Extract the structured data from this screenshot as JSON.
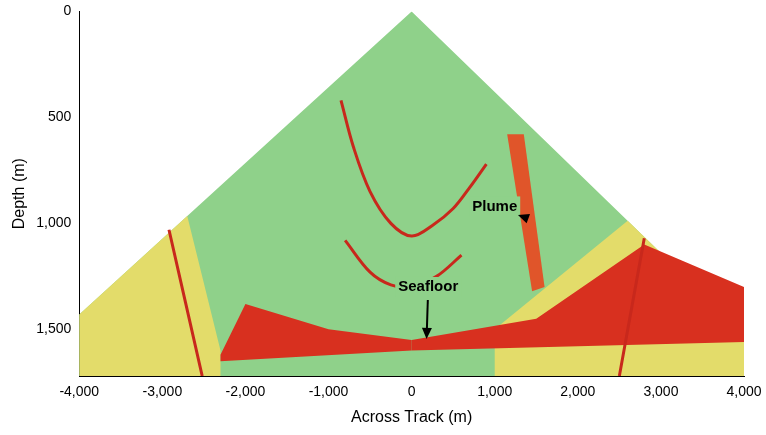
{
  "chart_data": {
    "type": "scatter",
    "x_label": "Across Track (m)",
    "y_label": "Depth (m)",
    "xlim": [
      -4000,
      4000
    ],
    "xticks": [
      -4000,
      -3000,
      -2000,
      -1000,
      0,
      1000,
      2000,
      3000,
      4000
    ],
    "ylim": [
      0,
      1720
    ],
    "yticks": [
      0,
      500,
      1000,
      1500
    ],
    "grid": false,
    "series": [
      {
        "type": "area",
        "color": "#8fd18a",
        "x": [
          0,
          -4000,
          -4000,
          4000,
          4000,
          0
        ],
        "values": [
          0,
          1430,
          1720,
          1720,
          1520,
          0
        ]
      },
      {
        "type": "area",
        "color": "#e3dc6a",
        "x": [
          -4000,
          -2700,
          -2300,
          -2300,
          -4000
        ],
        "values": [
          1430,
          965,
          1600,
          1720,
          1720
        ]
      },
      {
        "type": "area",
        "color": "#e3dc6a",
        "x": [
          4000,
          2600,
          1000,
          1000,
          4000
        ],
        "values": [
          1520,
          988,
          1500,
          1720,
          1720
        ]
      },
      {
        "type": "area",
        "color": "#d8301f",
        "x": [
          -2300,
          -2000,
          -1000,
          0,
          0,
          -2300
        ],
        "values": [
          1620,
          1380,
          1500,
          1550,
          1600,
          1650
        ]
      },
      {
        "type": "area",
        "color": "#d8301f",
        "x": [
          0,
          1500,
          2800,
          4000,
          4000,
          2000,
          0
        ],
        "values": [
          1550,
          1450,
          1100,
          1300,
          1560,
          1580,
          1600
        ]
      },
      {
        "type": "area",
        "color": "#e0552a",
        "x": [
          1150,
          1350,
          1600,
          1450,
          1150
        ],
        "values": [
          580,
          580,
          1300,
          1320,
          580
        ]
      },
      {
        "type": "line",
        "color": "#c8281c",
        "x": [
          -850,
          -700,
          -500,
          -250,
          0,
          250,
          500,
          700,
          900
        ],
        "values": [
          420,
          640,
          850,
          1000,
          1060,
          1010,
          930,
          830,
          720
        ]
      },
      {
        "type": "line",
        "color": "#c8281c",
        "x": [
          -800,
          -500,
          -250,
          0,
          300,
          600
        ],
        "values": [
          1080,
          1230,
          1290,
          1300,
          1250,
          1150
        ]
      },
      {
        "type": "line",
        "color": "#c8281c",
        "x": [
          -2920,
          -2520
        ],
        "values": [
          1030,
          1720
        ]
      },
      {
        "type": "line",
        "color": "#c8281c",
        "x": [
          2800,
          2500
        ],
        "values": [
          1070,
          1720
        ]
      }
    ],
    "annotations": [
      {
        "text": "Plume",
        "x": 1000,
        "y": 920,
        "arrow_x": 1280,
        "arrow_y": 960
      },
      {
        "text": "Seafloor",
        "x": 200,
        "y": 1300,
        "arrow_x": 180,
        "arrow_y": 1545
      }
    ]
  }
}
